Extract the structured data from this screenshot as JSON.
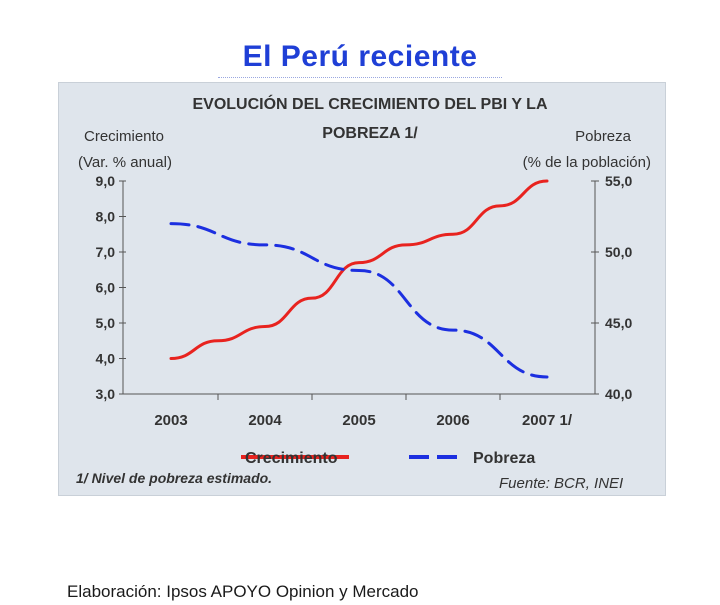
{
  "slide": {
    "title": "El Perú reciente",
    "credit": "Elaboración:  Ipsos APOYO Opinion y Mercado"
  },
  "chart_data": {
    "type": "line",
    "title_line1": "EVOLUCIÓN DEL CRECIMIENTO DEL PBI Y LA",
    "title_line2": "POBREZA 1/",
    "categories": [
      "2003",
      "2004",
      "2005",
      "2006",
      "2007 1/"
    ],
    "left_axis": {
      "label_line1": "Crecimiento",
      "label_line2": "(Var. % anual)",
      "ylim": [
        3.0,
        9.0
      ],
      "ticks": [
        "3,0",
        "4,0",
        "5,0",
        "6,0",
        "7,0",
        "8,0",
        "9,0"
      ]
    },
    "right_axis": {
      "label_line1": "Pobreza",
      "label_line2": "(% de la población)",
      "ylim": [
        40.0,
        55.0
      ],
      "ticks": [
        "40,0",
        "45,0",
        "50,0",
        "55,0"
      ]
    },
    "series": [
      {
        "name": "Crecimiento",
        "axis": "left",
        "color": "#e8231f",
        "style": "solid",
        "x": [
          0,
          0.5,
          1,
          1.5,
          2,
          2.5,
          3,
          3.5,
          4
        ],
        "values": [
          4.0,
          4.5,
          4.9,
          5.7,
          6.7,
          7.2,
          7.5,
          8.3,
          9.0
        ]
      },
      {
        "name": "Pobreza",
        "axis": "right",
        "color": "#1c2fe0",
        "style": "dashed",
        "x": [
          0,
          1,
          2,
          3,
          4
        ],
        "values": [
          52.0,
          50.5,
          48.7,
          44.5,
          41.2
        ]
      }
    ],
    "legend": [
      {
        "name": "Crecimiento",
        "color": "#e8231f",
        "style": "solid"
      },
      {
        "name": "Pobreza",
        "color": "#1c2fe0",
        "style": "dashed"
      }
    ],
    "footnote": "1/ Nivel de pobreza estimado.",
    "source": "Fuente: BCR, INEI"
  }
}
